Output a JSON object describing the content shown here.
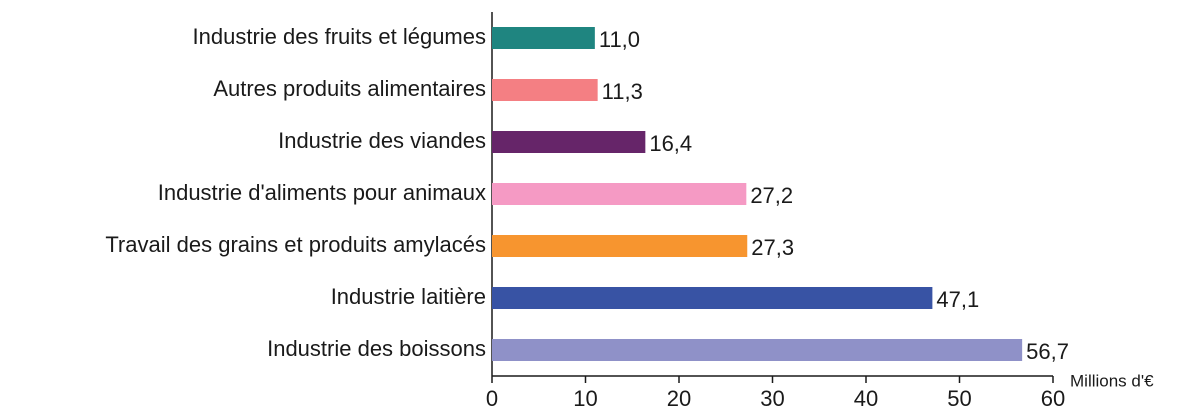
{
  "chart_data": {
    "type": "barh",
    "categories": [
      "Industrie des fruits et légumes",
      "Autres produits alimentaires",
      "Industrie des viandes",
      "Industrie d'aliments pour animaux",
      "Travail des grains et produits amylacés",
      "Industrie laitière",
      "Industrie des boissons"
    ],
    "values": [
      11.0,
      11.3,
      16.4,
      27.2,
      27.3,
      47.1,
      56.7
    ],
    "value_labels": [
      "11,0",
      "11,3",
      "16,4",
      "27,2",
      "27,3",
      "47,1",
      "56,7"
    ],
    "colors": [
      "#1f8580",
      "#f47f83",
      "#662569",
      "#f59ac4",
      "#f7952f",
      "#3853a4",
      "#8f91c8"
    ],
    "xlabel": "Millions d'€",
    "xlim": [
      0,
      60
    ],
    "xticks": [
      0,
      10,
      20,
      30,
      40,
      50,
      60
    ],
    "grid": false
  }
}
